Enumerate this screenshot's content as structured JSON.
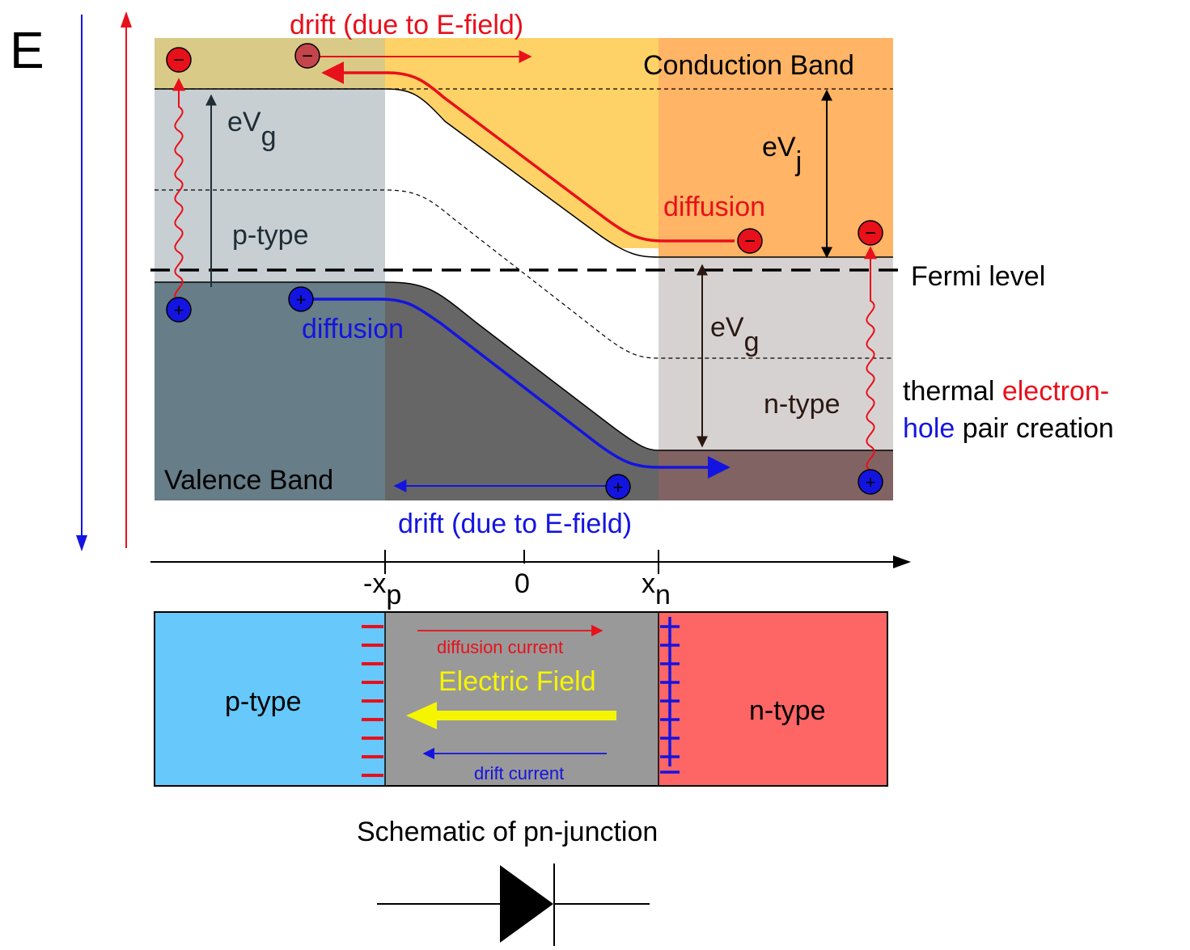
{
  "energy_axis_label": "E",
  "top_drift_label": "drift (due to E-field)",
  "conduction_band_label": "Conduction Band",
  "valence_band_label": "Valence Band",
  "fermi_level_label": "Fermi level",
  "eVg_left": {
    "main": "eV",
    "sub": "g"
  },
  "eVg_right": {
    "main": "eV",
    "sub": "g"
  },
  "eVj": {
    "main": "eV",
    "sub": "j"
  },
  "p_type_band_label": "p-type",
  "n_type_band_label": "n-type",
  "electron_diffusion_label": "diffusion",
  "hole_diffusion_label": "diffusion",
  "bottom_drift_label": "drift (due to E-field)",
  "thermal_label": {
    "word1": "thermal",
    "word2": "electron-",
    "word3": "hole",
    "word4": "pair creation"
  },
  "position_axis": {
    "neg_xp": {
      "main": "-x",
      "sub": "p"
    },
    "zero": "0",
    "xn": {
      "main": "x",
      "sub": "n"
    }
  },
  "junction": {
    "p_label": "p-type",
    "n_label": "n-type",
    "diffusion_current": "diffusion current",
    "electric_field": "Electric Field",
    "drift_current": "drift current"
  },
  "schematic_title": "Schematic of pn-junction",
  "symbols": {
    "electron": "−",
    "hole": "+"
  },
  "colors": {
    "electron": "#e8101a",
    "hole": "#1414e0",
    "field": "#f5f500",
    "p_region": "#66c8fb",
    "n_region": "#fe6565",
    "depletion": "#999999"
  }
}
